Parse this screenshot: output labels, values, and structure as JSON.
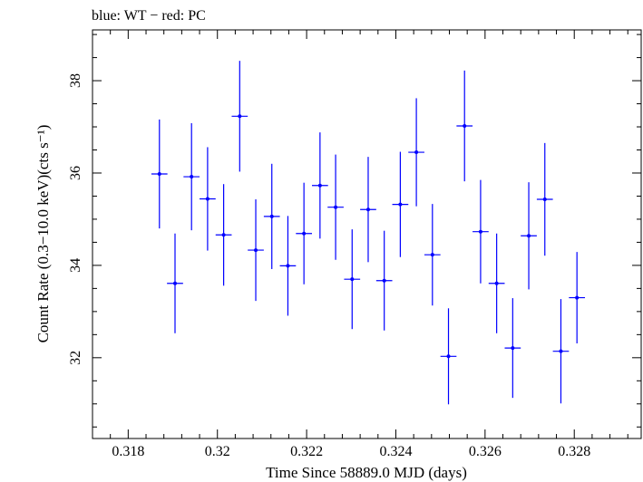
{
  "chart_data": {
    "type": "scatter",
    "title": "blue: WT − red: PC",
    "xlabel": "Time Since 58889.0 MJD (days)",
    "ylabel": "Count Rate (0.3−10.0 keV)(cts s⁻¹)",
    "xlim": [
      0.3172,
      0.3295
    ],
    "ylim": [
      30.25,
      39.1
    ],
    "x_ticks": [
      0.318,
      0.32,
      0.322,
      0.324,
      0.326,
      0.328
    ],
    "x_tick_labels": [
      "0.318",
      "0.32",
      "0.322",
      "0.324",
      "0.326",
      "0.328"
    ],
    "y_ticks": [
      32,
      34,
      36,
      38
    ],
    "y_tick_labels": [
      "32",
      "34",
      "36",
      "38"
    ],
    "grid": false,
    "legend": "none",
    "series": [
      {
        "color": "#0000ff",
        "x_halfwidth": 0.00018,
        "points": [
          {
            "x": 0.3187,
            "y": 35.98,
            "yerr": 1.18
          },
          {
            "x": 0.31905,
            "y": 33.61,
            "yerr": 1.08
          },
          {
            "x": 0.31942,
            "y": 35.92,
            "yerr": 1.16
          },
          {
            "x": 0.31978,
            "y": 35.44,
            "yerr": 1.12
          },
          {
            "x": 0.32014,
            "y": 34.66,
            "yerr": 1.1
          },
          {
            "x": 0.3205,
            "y": 37.23,
            "yerr": 1.2
          },
          {
            "x": 0.32086,
            "y": 34.33,
            "yerr": 1.1
          },
          {
            "x": 0.32122,
            "y": 35.06,
            "yerr": 1.14
          },
          {
            "x": 0.32158,
            "y": 33.99,
            "yerr": 1.08
          },
          {
            "x": 0.32194,
            "y": 34.69,
            "yerr": 1.1
          },
          {
            "x": 0.3223,
            "y": 35.73,
            "yerr": 1.15
          },
          {
            "x": 0.32265,
            "y": 35.26,
            "yerr": 1.14
          },
          {
            "x": 0.32302,
            "y": 33.7,
            "yerr": 1.08
          },
          {
            "x": 0.32338,
            "y": 35.21,
            "yerr": 1.14
          },
          {
            "x": 0.32374,
            "y": 33.67,
            "yerr": 1.08
          },
          {
            "x": 0.3241,
            "y": 35.32,
            "yerr": 1.14
          },
          {
            "x": 0.32446,
            "y": 36.45,
            "yerr": 1.17
          },
          {
            "x": 0.32482,
            "y": 34.23,
            "yerr": 1.1
          },
          {
            "x": 0.32518,
            "y": 32.03,
            "yerr": 1.04
          },
          {
            "x": 0.32554,
            "y": 37.02,
            "yerr": 1.2
          },
          {
            "x": 0.3259,
            "y": 34.73,
            "yerr": 1.12
          },
          {
            "x": 0.32626,
            "y": 33.61,
            "yerr": 1.08
          },
          {
            "x": 0.32662,
            "y": 32.21,
            "yerr": 1.08
          },
          {
            "x": 0.32698,
            "y": 34.64,
            "yerr": 1.16
          },
          {
            "x": 0.32734,
            "y": 35.43,
            "yerr": 1.22
          },
          {
            "x": 0.3277,
            "y": 32.14,
            "yerr": 1.13
          },
          {
            "x": 0.32806,
            "y": 33.3,
            "yerr": 0.99
          }
        ]
      }
    ]
  }
}
